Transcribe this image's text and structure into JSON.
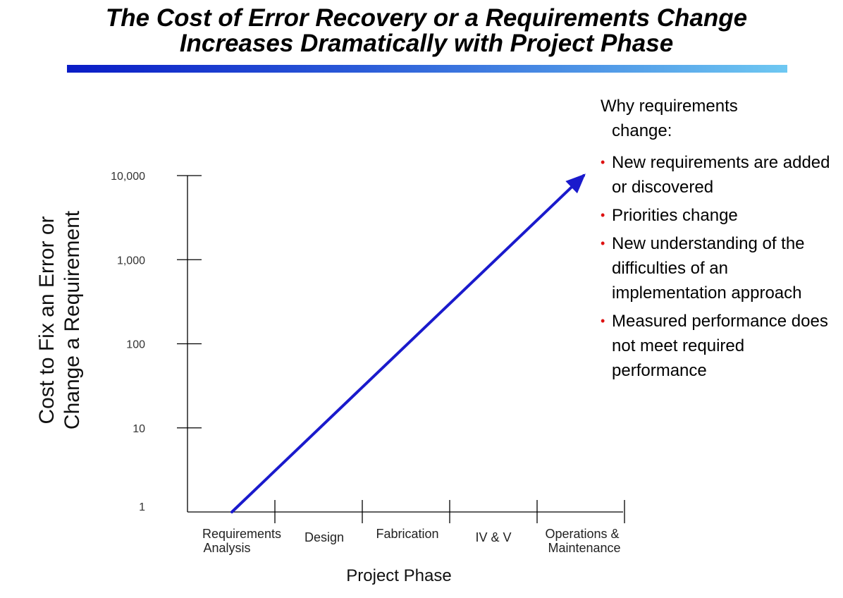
{
  "title": {
    "line1": "The Cost of Error Recovery or a Requirements Change",
    "line2": "Increases Dramatically with Project Phase"
  },
  "colors": {
    "line": "#1a1acc",
    "bullet": "#dd1111",
    "axis": "#000000"
  },
  "chart_data": {
    "type": "line",
    "title": "",
    "xlabel": "Project Phase",
    "ylabel_lines": [
      "Cost to  Fix an Error or",
      "Change a Requirement"
    ],
    "y_scale": "log",
    "ylim": [
      1,
      10000
    ],
    "y_ticks": [
      {
        "value": 1,
        "label": "1"
      },
      {
        "value": 10,
        "label": "10"
      },
      {
        "value": 100,
        "label": "100"
      },
      {
        "value": 1000,
        "label": "1,000"
      },
      {
        "value": 10000,
        "label": "10,000"
      }
    ],
    "categories": [
      [
        "Requirements",
        "Analysis"
      ],
      [
        "Design"
      ],
      [
        "Fabrication"
      ],
      [
        "IV & V"
      ],
      [
        "Operations &",
        "Maintenance"
      ]
    ],
    "series": [
      {
        "name": "Cost",
        "points": [
          {
            "phase": 0.5,
            "value": 1
          },
          {
            "phase": 5.0,
            "value": 10000
          }
        ]
      }
    ],
    "arrow_end": true
  },
  "side_panel": {
    "heading_line1": "Why requirements",
    "heading_line2": "change:",
    "bullets": [
      "New requirements are added or discovered",
      "Priorities change",
      "New understanding of the difficulties of an implementation approach",
      "Measured performance does not meet required performance"
    ]
  }
}
